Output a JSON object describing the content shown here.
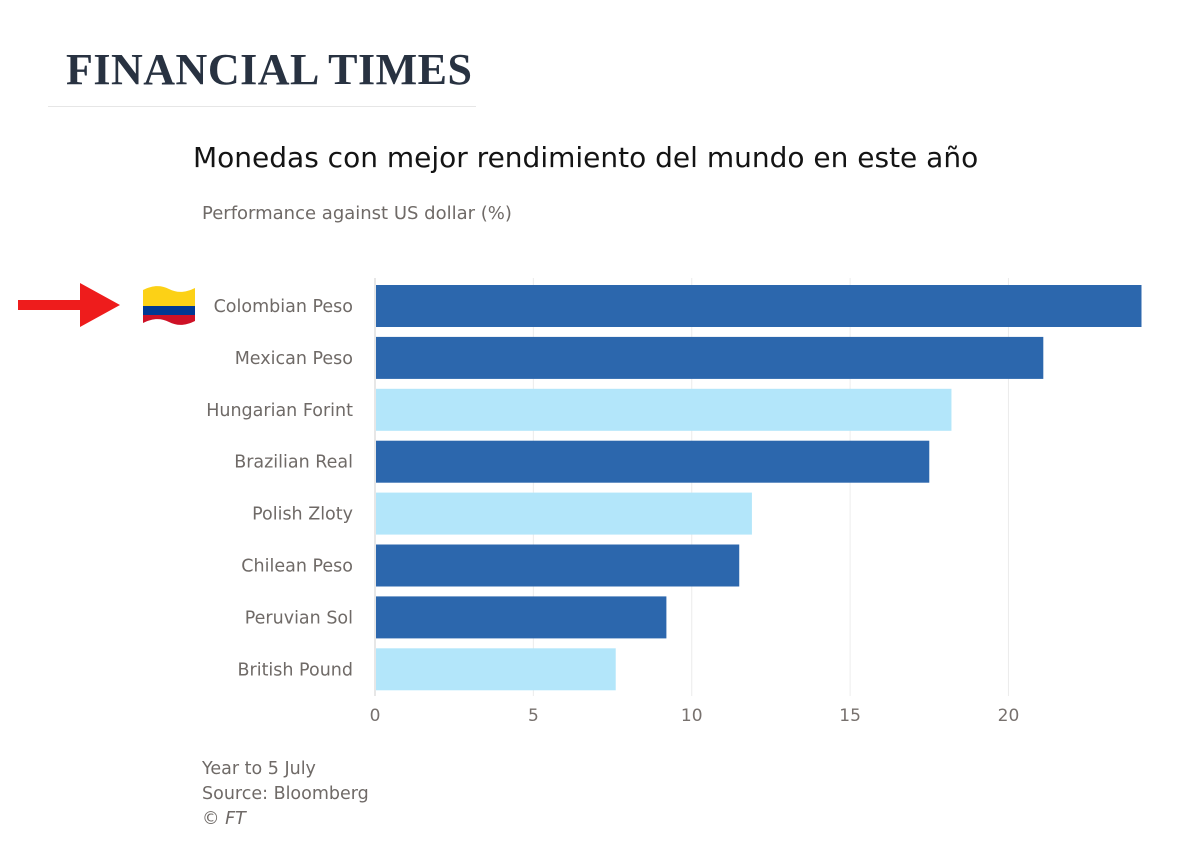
{
  "header": {
    "masthead": "FINANCIAL TIMES"
  },
  "chart_data": {
    "type": "bar",
    "orientation": "horizontal",
    "title": "Monedas con mejor rendimiento del mundo en este año",
    "subtitle": "Performance against US dollar (%)",
    "categories": [
      "Colombian Peso",
      "Mexican Peso",
      "Hungarian Forint",
      "Brazilian Real",
      "Polish Zloty",
      "Chilean Peso",
      "Peruvian Sol",
      "British Pound"
    ],
    "values": [
      24.2,
      21.1,
      18.2,
      17.5,
      11.9,
      11.5,
      9.2,
      7.6
    ],
    "bar_colors": [
      "#2c67ad",
      "#2c67ad",
      "#b3e6fa",
      "#2c67ad",
      "#b3e6fa",
      "#2c67ad",
      "#2c67ad",
      "#b3e6fa"
    ],
    "xlim": [
      0,
      24.5
    ],
    "xticks": [
      0,
      5,
      10,
      15,
      20
    ],
    "grid": true,
    "legend": "none",
    "highlight": {
      "category": "Colombian Peso",
      "marker_icon": "red-arrow-icon",
      "flag_icon": "colombia-flag-icon",
      "arrow_color": "#ee1c1c",
      "flag_colors": [
        "#fcd116",
        "#003893",
        "#ce1126"
      ]
    }
  },
  "notes": {
    "line1": "Year to 5 July",
    "source": "Source: Bloomberg",
    "copyright": "© FT"
  }
}
